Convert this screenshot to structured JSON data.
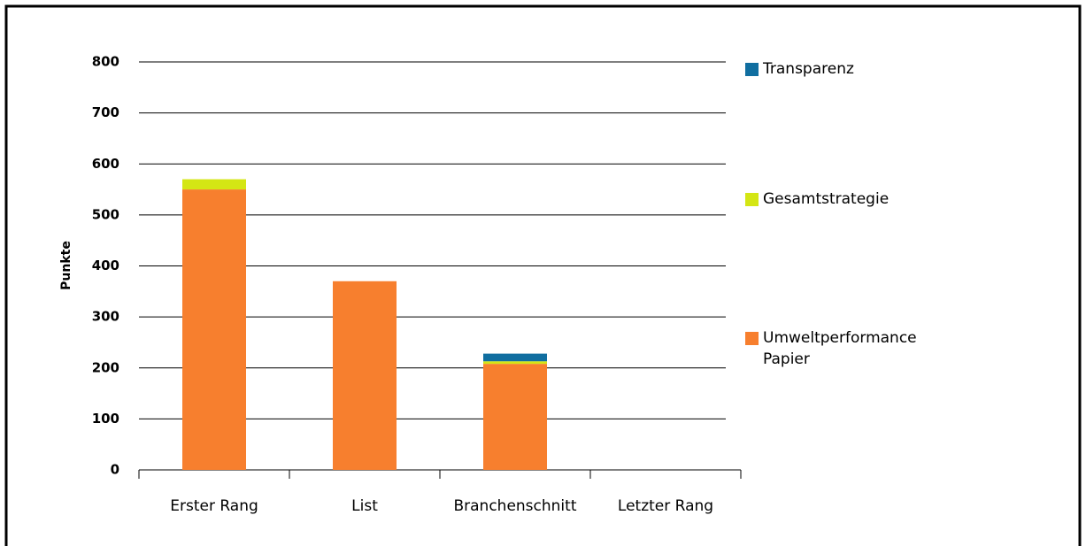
{
  "chart_data": {
    "type": "stacked_bar",
    "ylabel": "Punkte",
    "categories": [
      "Erster Rang",
      "List",
      "Branchenschnitt",
      "Letzter Rang"
    ],
    "series": [
      {
        "name": "Umweltperformance Papier",
        "color": "#f77f2e",
        "values": [
          550,
          370,
          208,
          0
        ]
      },
      {
        "name": "Gesamtstrategie",
        "color": "#d4e614",
        "values": [
          20,
          0,
          5,
          0
        ]
      },
      {
        "name": "Transparenz",
        "color": "#106ea0",
        "values": [
          0,
          0,
          15,
          0
        ]
      }
    ],
    "ylim": [
      0,
      800
    ],
    "yticks": [
      0,
      100,
      200,
      300,
      400,
      500,
      600,
      700,
      800
    ],
    "grid": true
  }
}
